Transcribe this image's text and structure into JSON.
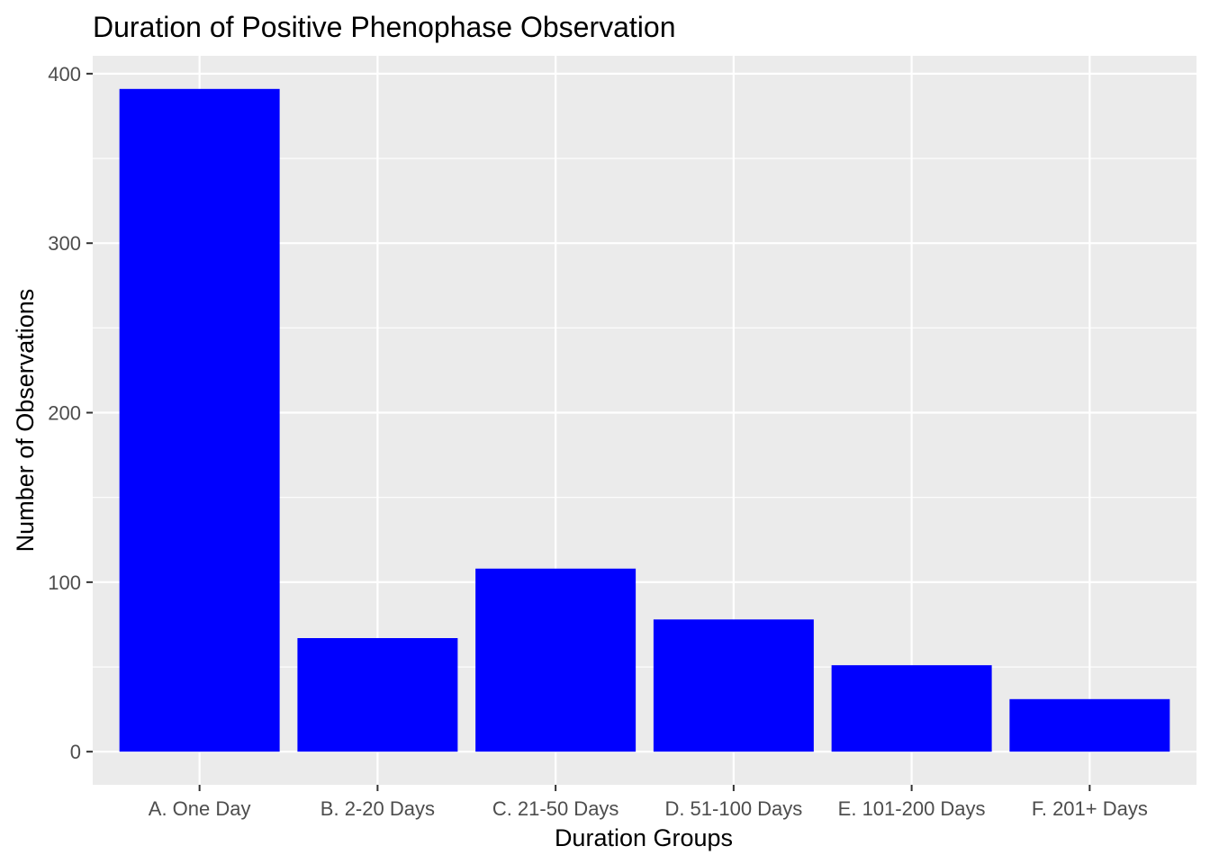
{
  "chart_data": {
    "type": "bar",
    "title": "Duration of Positive Phenophase Observation",
    "xlabel": "Duration Groups",
    "ylabel": "Number of Observations",
    "categories": [
      "A. One Day",
      "B. 2-20 Days",
      "C. 21-50 Days",
      "D. 51-100 Days",
      "E. 101-200 Days",
      "F. 201+ Days"
    ],
    "values": [
      391,
      67,
      108,
      78,
      51,
      31
    ],
    "ylim": [
      -19.55,
      410.55
    ],
    "yticks": [
      0,
      100,
      200,
      300,
      400
    ],
    "grid": true,
    "legend": "none",
    "colors": {
      "bar": "#0000FF",
      "panel": "#EBEBEB",
      "grid": "#FFFFFF",
      "tick_text": "#4D4D4D",
      "tick_mark": "#333333",
      "text": "#000000"
    }
  }
}
